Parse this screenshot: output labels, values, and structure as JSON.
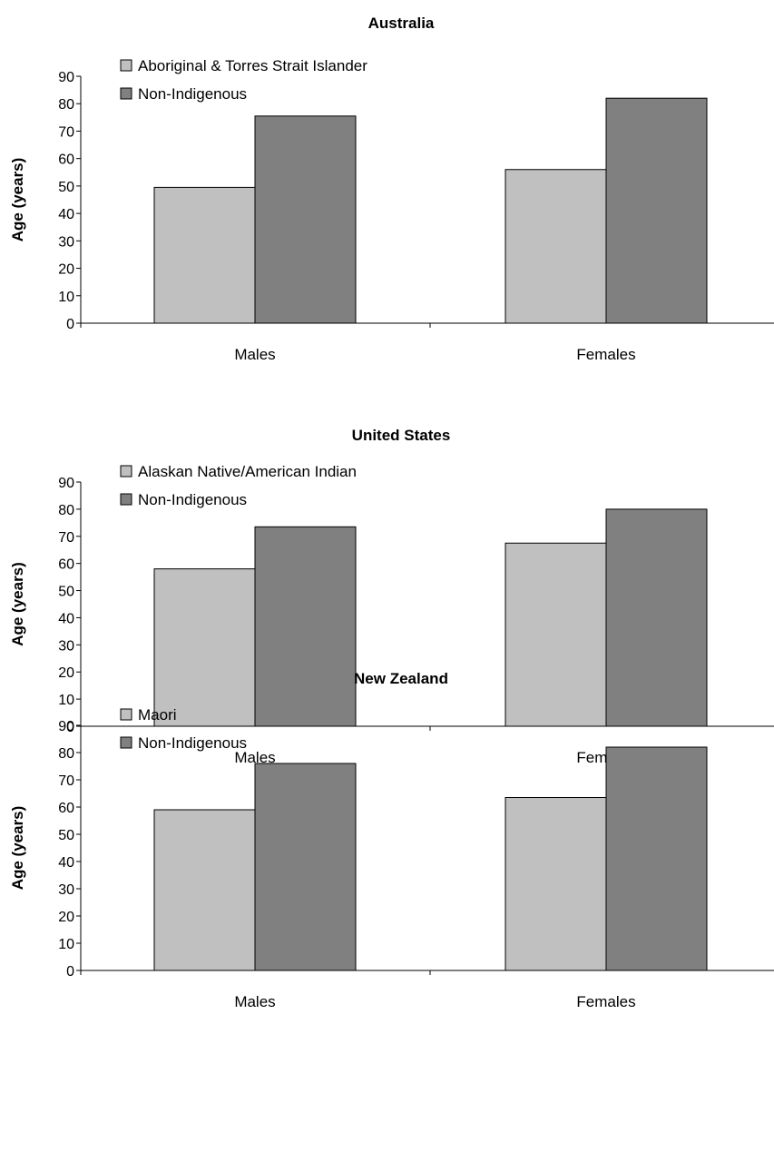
{
  "colors": {
    "indigenous": "#c0c0c0",
    "non_indigenous": "#808080",
    "outline": "#000000"
  },
  "chart_data": [
    {
      "type": "bar",
      "title": "Australia",
      "ylabel": "Age (years)",
      "ylim": [
        0,
        90
      ],
      "yticks": [
        "0",
        "10",
        "20",
        "30",
        "40",
        "50",
        "60",
        "70",
        "80",
        "90"
      ],
      "categories": [
        "Males",
        "Females"
      ],
      "legend_position": "top-left",
      "series": [
        {
          "name": "Aboriginal & Torres Strait Islander",
          "values": [
            49.5,
            56
          ]
        },
        {
          "name": "Non-Indigenous",
          "values": [
            75.5,
            82
          ]
        }
      ]
    },
    {
      "type": "bar",
      "title": "United States",
      "ylabel": "Age (years)",
      "ylim": [
        0,
        90
      ],
      "yticks": [
        "0",
        "10",
        "20",
        "30",
        "40",
        "50",
        "60",
        "70",
        "80",
        "90"
      ],
      "categories": [
        "Males",
        "Females"
      ],
      "legend_position": "top-left",
      "series": [
        {
          "name": "Alaskan Native/American Indian",
          "values": [
            58,
            67.5
          ]
        },
        {
          "name": "Non-Indigenous",
          "values": [
            73.5,
            80
          ]
        }
      ]
    },
    {
      "type": "bar",
      "title": "New Zealand",
      "ylabel": "Age (years)",
      "ylim": [
        0,
        90
      ],
      "yticks": [
        "0",
        "10",
        "20",
        "30",
        "40",
        "50",
        "60",
        "70",
        "80",
        "90"
      ],
      "categories": [
        "Males",
        "Females"
      ],
      "legend_position": "top-left",
      "series": [
        {
          "name": "Maori",
          "values": [
            59,
            63.5
          ]
        },
        {
          "name": "Non-Indigenous",
          "values": [
            76,
            82
          ]
        }
      ]
    }
  ]
}
